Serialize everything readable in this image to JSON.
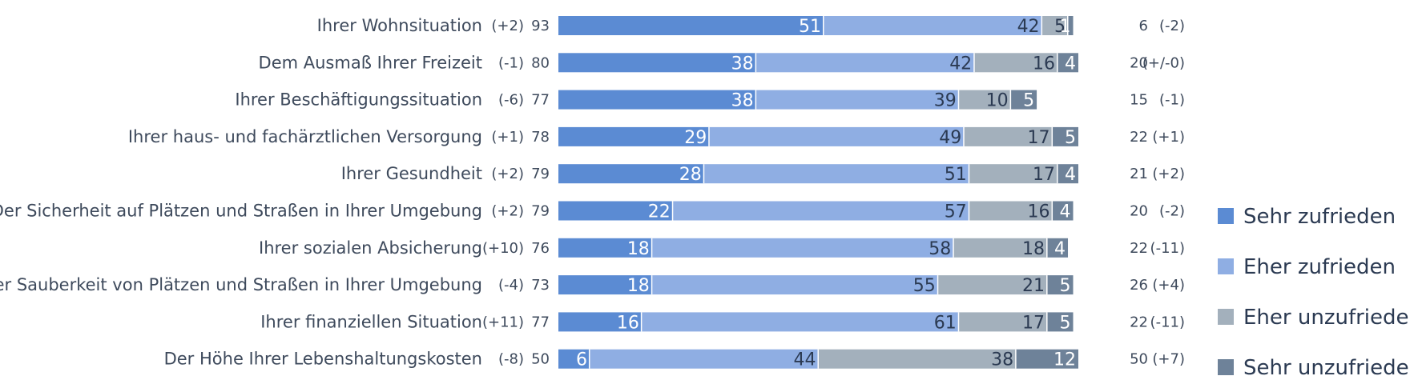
{
  "colors": {
    "sehr_zufrieden": "#5b8bd3",
    "eher_zufrieden": "#8faee3",
    "eher_unzufrieden": "#a3b0bc",
    "sehr_unzufrieden": "#6e8299"
  },
  "chart_data": {
    "type": "bar",
    "orientation": "horizontal",
    "stacked": true,
    "title": "",
    "xlabel": "",
    "ylabel": "",
    "legend_position": "right",
    "grid": false,
    "categories": [
      "Ihrer Wohnsituation",
      "Dem Ausmaß Ihrer Freizeit",
      "Ihrer Beschäftigungssituation",
      "Ihrer haus- und fachärztlichen Versorgung",
      "Ihrer Gesundheit",
      "Der Sicherheit auf Plätzen und Straßen in Ihrer Umgebung",
      "Ihrer sozialen Absicherung",
      "Der Sauberkeit von Plätzen und Straßen in Ihrer Umgebung",
      "Ihrer finanziellen Situation",
      "Der Höhe Ihrer Lebenshaltungskosten"
    ],
    "series": [
      {
        "name": "Sehr zufrieden",
        "color_key": "sehr_zufrieden",
        "values": [
          51,
          38,
          38,
          29,
          28,
          22,
          18,
          18,
          16,
          6
        ]
      },
      {
        "name": "Eher zufrieden",
        "color_key": "eher_zufrieden",
        "values": [
          42,
          42,
          39,
          49,
          51,
          57,
          58,
          55,
          61,
          44
        ]
      },
      {
        "name": "Eher unzufrieden",
        "color_key": "eher_unzufrieden",
        "values": [
          5,
          16,
          10,
          17,
          17,
          16,
          18,
          21,
          17,
          38
        ]
      },
      {
        "name": "Sehr unzufrieden",
        "color_key": "sehr_unzufrieden",
        "values": [
          1,
          4,
          5,
          5,
          4,
          4,
          4,
          5,
          5,
          12
        ]
      }
    ],
    "zufrieden_change": [
      "(+2)",
      "(-1)",
      "(-6)",
      "(+1)",
      "(+2)",
      "(+2)",
      "(+10)",
      "(-4)",
      "(+11)",
      "(-8)"
    ],
    "zufrieden_total": [
      93,
      80,
      77,
      78,
      79,
      79,
      76,
      73,
      77,
      50
    ],
    "unzufrieden_total": [
      6,
      20,
      15,
      22,
      21,
      20,
      22,
      26,
      22,
      50
    ],
    "unzufrieden_change": [
      "(-2)",
      "(+/-0)",
      "(-1)",
      "(+1)",
      "(+2)",
      "(-2)",
      "(-11)",
      "(+4)",
      "(-11)",
      "(+7)"
    ]
  }
}
